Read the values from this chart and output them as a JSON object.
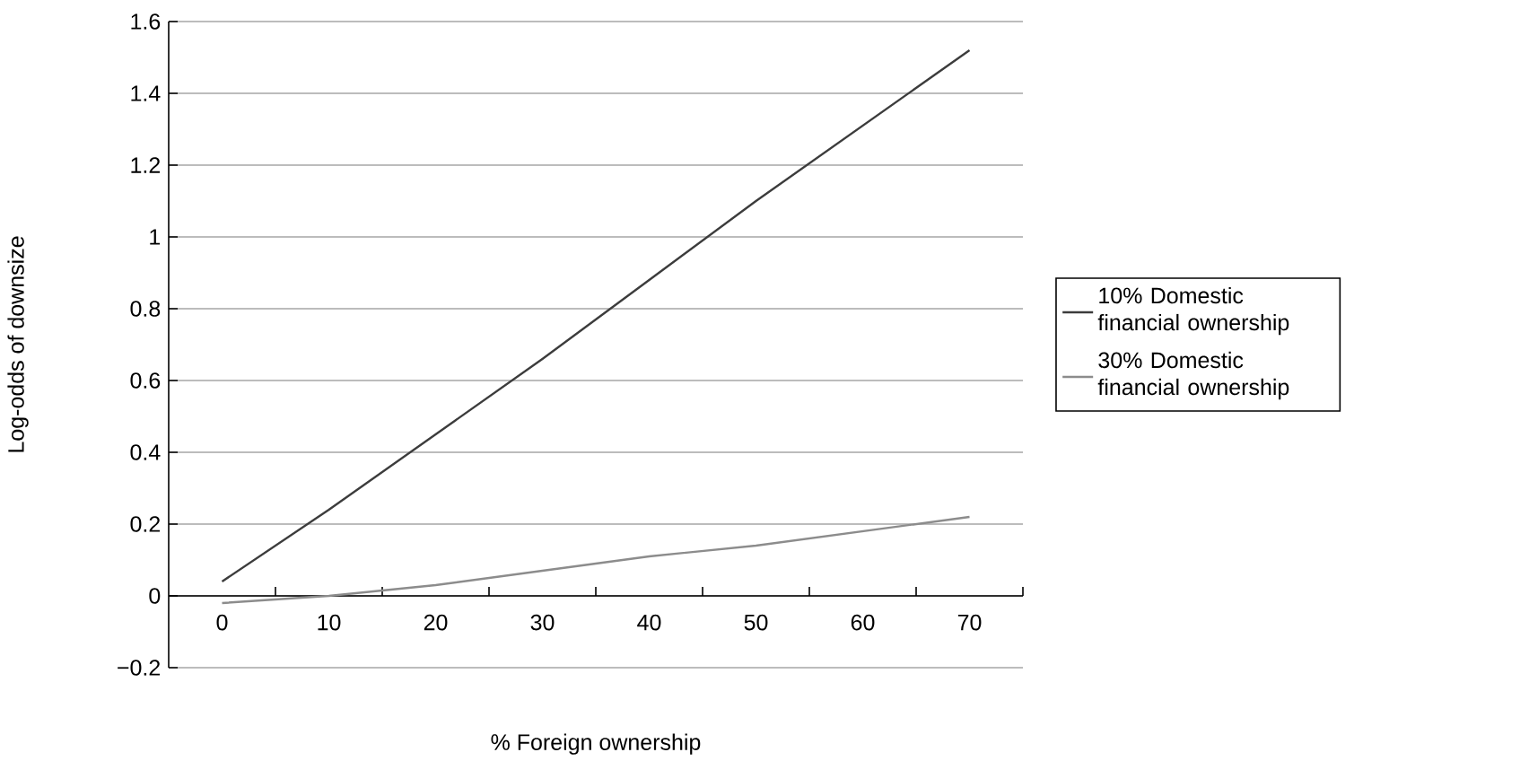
{
  "chart_data": {
    "type": "line",
    "xlabel": "% Foreign ownership",
    "ylabel": "Log-odds of downsize",
    "x": [
      0,
      10,
      20,
      30,
      40,
      50,
      60,
      70
    ],
    "series": [
      {
        "name": "10% Domestic financial ownership",
        "color": "#3c3c3c",
        "values": [
          0.04,
          0.24,
          0.45,
          0.66,
          0.88,
          1.1,
          1.31,
          1.52
        ]
      },
      {
        "name": "30% Domestic financial ownership",
        "color": "#8c8c8c",
        "values": [
          -0.02,
          0.0,
          0.03,
          0.07,
          0.11,
          0.14,
          0.18,
          0.22
        ]
      }
    ],
    "xlim": [
      -5,
      75
    ],
    "xticks": [
      0,
      10,
      20,
      30,
      40,
      50,
      60,
      70,
      {
        "value": 5,
        "label": null
      },
      {
        "value": 15,
        "label": null
      },
      {
        "value": 25,
        "label": null
      },
      {
        "value": 35,
        "label": null
      },
      {
        "value": 45,
        "label": null
      },
      {
        "value": 55,
        "label": null
      },
      {
        "value": 65,
        "label": null
      },
      {
        "value": 75,
        "label": null
      }
    ],
    "ylim": [
      -0.2,
      1.6
    ],
    "yticks": [
      {
        "value": -0.2,
        "label": "−0.2"
      },
      0,
      0.2,
      0.4,
      0.6,
      0.8,
      1,
      1.2,
      1.4,
      1.6
    ],
    "grid": "y",
    "legend": "right",
    "marker": "none",
    "line_style": "solid"
  }
}
